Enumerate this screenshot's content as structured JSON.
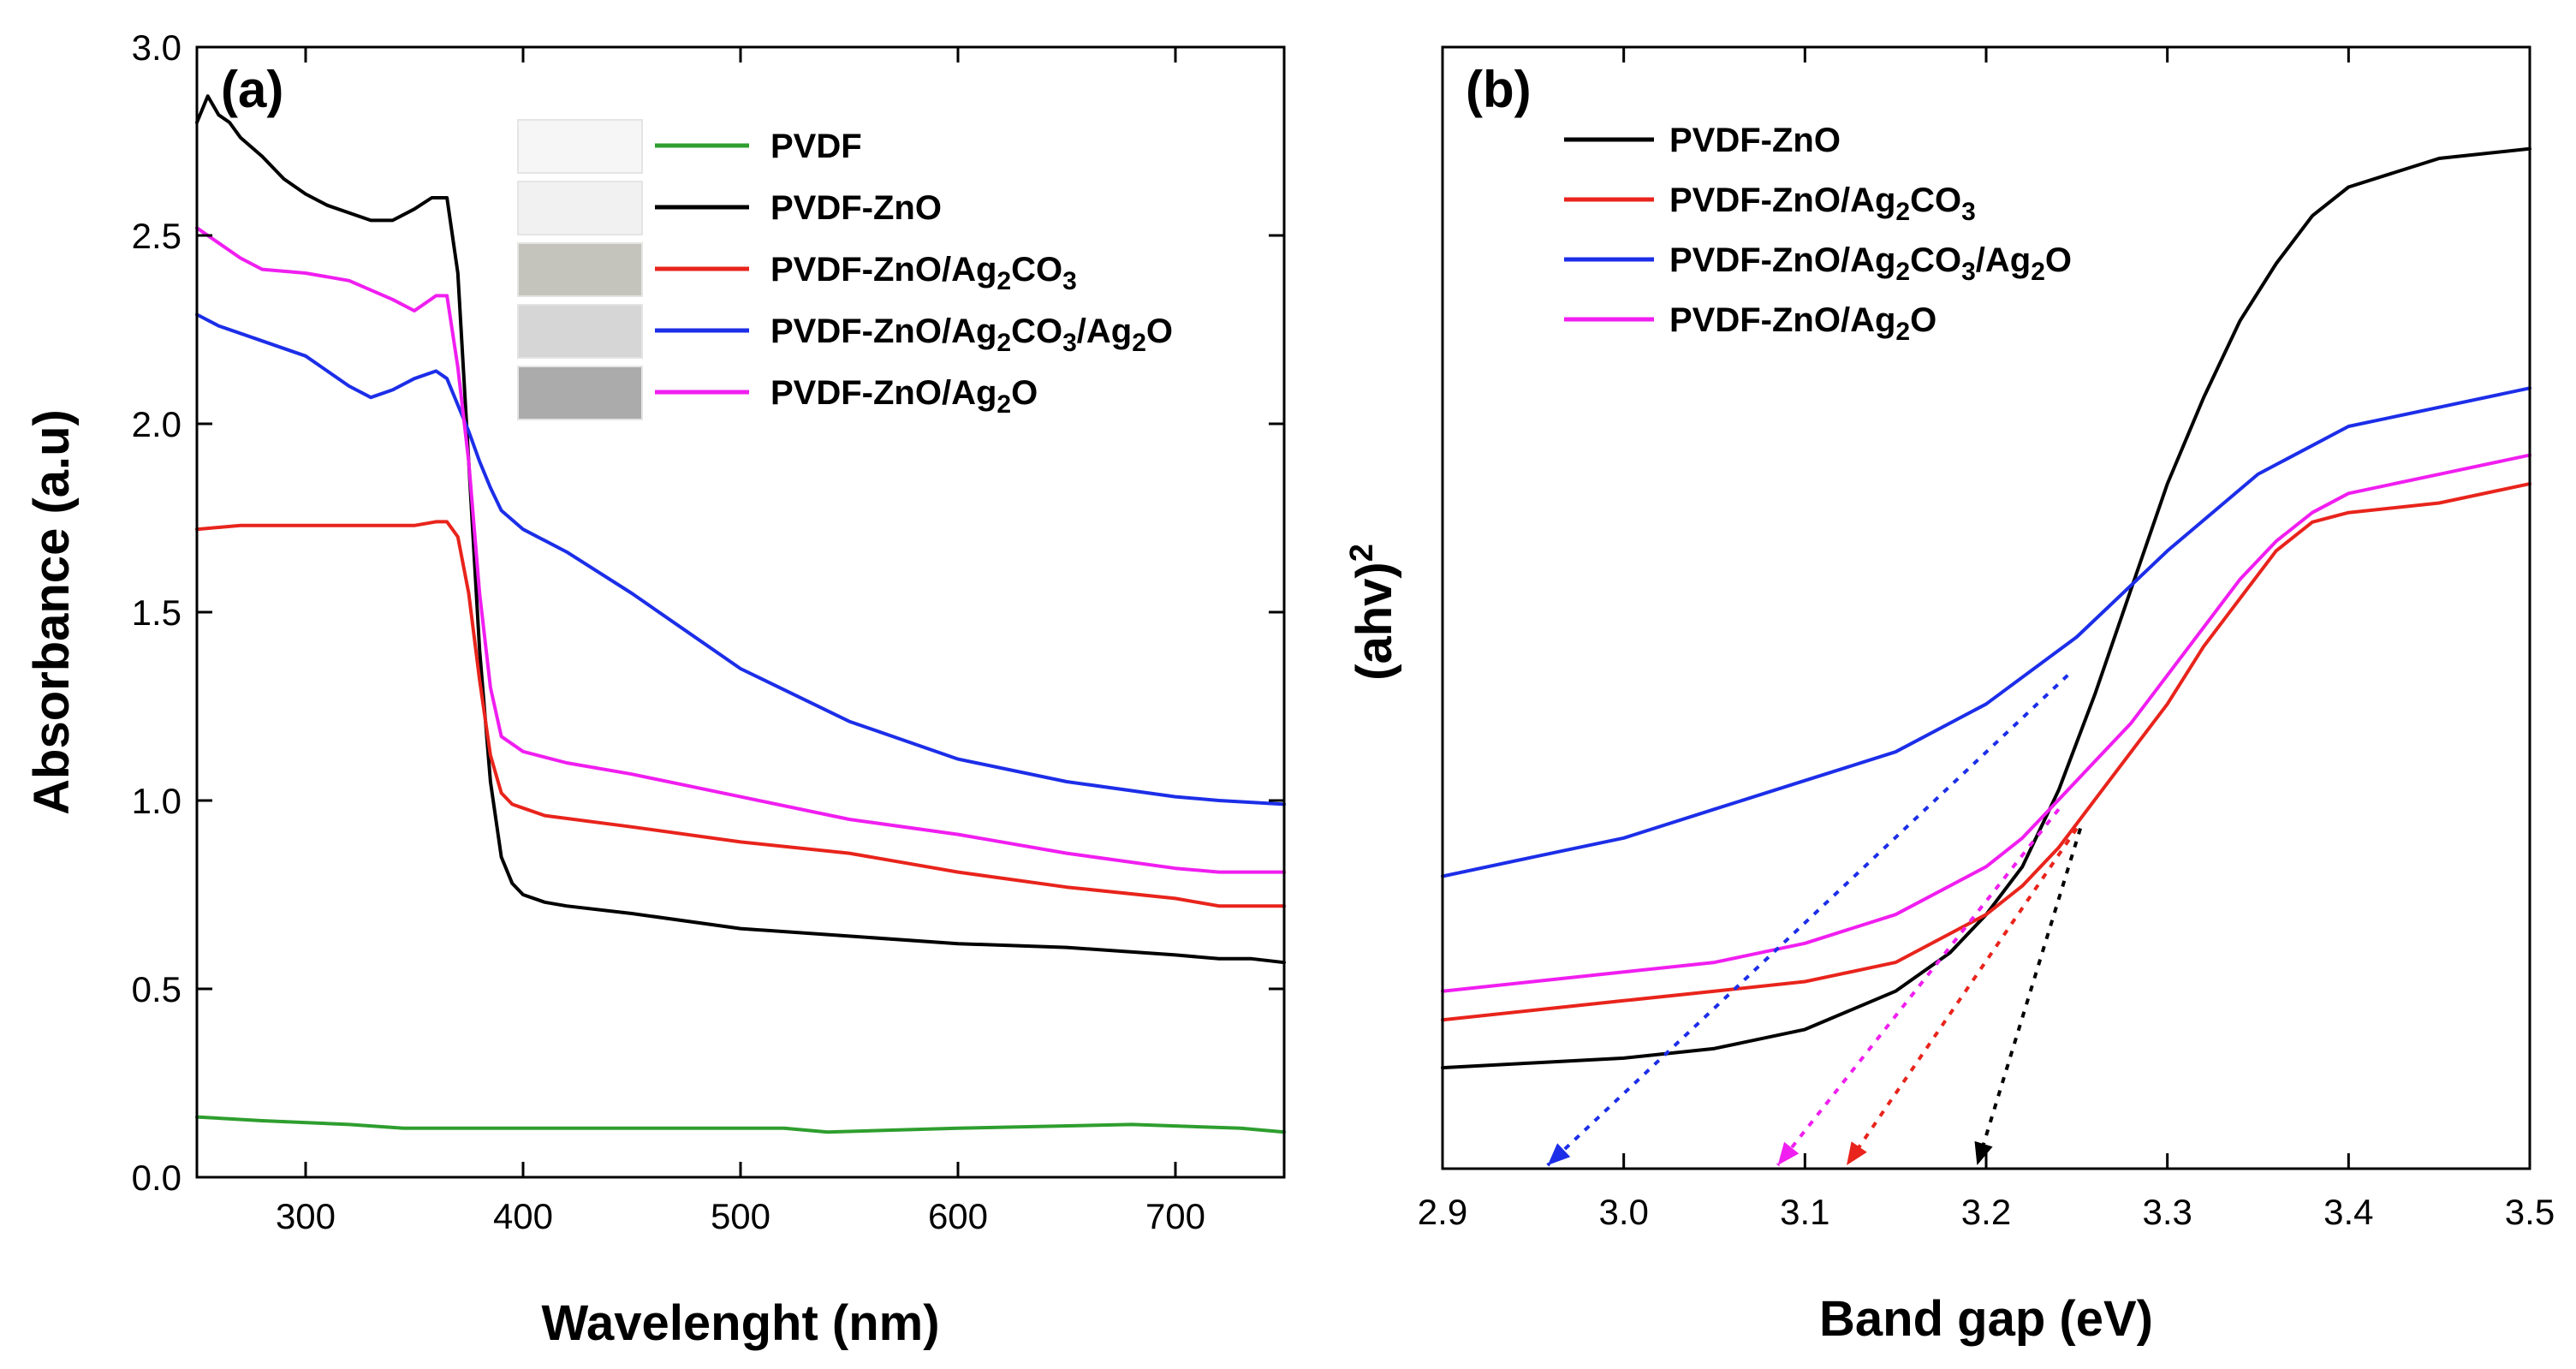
{
  "chart_data": [
    {
      "type": "line",
      "panel_label": "(a)",
      "xlabel": "Wavelenght (nm)",
      "ylabel": "Absorbance (a.u)",
      "xlim": [
        250,
        750
      ],
      "ylim": [
        0.0,
        3.0
      ],
      "x_ticks": [
        300,
        400,
        500,
        600,
        700
      ],
      "y_ticks": [
        0.0,
        0.5,
        1.0,
        1.5,
        2.0,
        2.5,
        3.0
      ],
      "y_tick_labels": [
        "0.0",
        "0.5",
        "1.0",
        "1.5",
        "2.0",
        "2.5",
        "3.0"
      ],
      "grid": false,
      "legend_position": "top-right",
      "legend_swatches": [
        "#f6f6f6",
        "#f1f1f1",
        "#c4c4bc",
        "#d6d6d6",
        "#ababab"
      ],
      "series": [
        {
          "name": "PVDF",
          "label_main": "PVDF",
          "label_parts": [],
          "color": "#2e9e2e",
          "x": [
            250,
            280,
            320,
            345,
            360,
            400,
            450,
            500,
            520,
            540,
            600,
            680,
            730,
            750
          ],
          "y": [
            0.16,
            0.15,
            0.14,
            0.13,
            0.13,
            0.13,
            0.13,
            0.13,
            0.13,
            0.12,
            0.13,
            0.14,
            0.13,
            0.12
          ]
        },
        {
          "name": "PVDF-ZnO",
          "label_main": "PVDF-ZnO",
          "label_parts": [],
          "color": "#000000",
          "x": [
            250,
            255,
            260,
            265,
            270,
            280,
            290,
            300,
            310,
            320,
            330,
            340,
            350,
            358,
            365,
            370,
            375,
            380,
            385,
            390,
            395,
            400,
            410,
            420,
            450,
            500,
            550,
            600,
            650,
            700,
            720,
            735,
            750
          ],
          "y": [
            2.8,
            2.87,
            2.82,
            2.8,
            2.76,
            2.71,
            2.65,
            2.61,
            2.58,
            2.56,
            2.54,
            2.54,
            2.57,
            2.6,
            2.6,
            2.4,
            1.9,
            1.4,
            1.05,
            0.85,
            0.78,
            0.75,
            0.73,
            0.72,
            0.7,
            0.66,
            0.64,
            0.62,
            0.61,
            0.59,
            0.58,
            0.58,
            0.57
          ]
        },
        {
          "name": "PVDF-ZnO/Ag2CO3",
          "label_main": "PVDF-ZnO/Ag",
          "label_parts": [
            "2",
            "CO",
            "3"
          ],
          "color": "#e8241c",
          "x": [
            250,
            270,
            300,
            330,
            350,
            360,
            365,
            370,
            375,
            380,
            385,
            390,
            395,
            400,
            410,
            450,
            500,
            550,
            600,
            650,
            700,
            720,
            750
          ],
          "y": [
            1.72,
            1.73,
            1.73,
            1.73,
            1.73,
            1.74,
            1.74,
            1.7,
            1.55,
            1.32,
            1.12,
            1.02,
            0.99,
            0.98,
            0.96,
            0.93,
            0.89,
            0.86,
            0.81,
            0.77,
            0.74,
            0.72,
            0.72
          ]
        },
        {
          "name": "PVDF-ZnO/Ag2CO3/Ag2O",
          "label_main": "PVDF-ZnO/Ag",
          "label_parts": [
            "2",
            "CO",
            "3",
            "/Ag",
            "2",
            "O"
          ],
          "color": "#1c2ee8",
          "x": [
            250,
            260,
            280,
            300,
            320,
            330,
            340,
            350,
            360,
            365,
            370,
            375,
            380,
            385,
            390,
            400,
            420,
            450,
            480,
            500,
            550,
            600,
            650,
            700,
            720,
            750
          ],
          "y": [
            2.29,
            2.26,
            2.22,
            2.18,
            2.1,
            2.07,
            2.09,
            2.12,
            2.14,
            2.12,
            2.05,
            1.98,
            1.9,
            1.83,
            1.77,
            1.72,
            1.66,
            1.55,
            1.43,
            1.35,
            1.21,
            1.11,
            1.05,
            1.01,
            1.0,
            0.99
          ]
        },
        {
          "name": "PVDF-ZnO/Ag2O",
          "label_main": "PVDF-ZnO/Ag",
          "label_parts": [
            "2",
            "O"
          ],
          "color": "#f01ef0",
          "x": [
            250,
            260,
            270,
            280,
            300,
            320,
            340,
            350,
            360,
            365,
            370,
            375,
            380,
            385,
            390,
            400,
            420,
            450,
            500,
            550,
            600,
            650,
            700,
            720,
            750
          ],
          "y": [
            2.52,
            2.48,
            2.44,
            2.41,
            2.4,
            2.38,
            2.33,
            2.3,
            2.34,
            2.34,
            2.15,
            1.9,
            1.55,
            1.3,
            1.17,
            1.13,
            1.1,
            1.07,
            1.01,
            0.95,
            0.91,
            0.86,
            0.82,
            0.81,
            0.81
          ]
        }
      ]
    },
    {
      "type": "line",
      "panel_label": "(b)",
      "xlabel": "Band gap (eV)",
      "ylabel": "(ahv)",
      "ylabel_sup": "2",
      "xlim": [
        2.9,
        3.5
      ],
      "ylim": [
        0,
        1
      ],
      "x_ticks": [
        2.9,
        3.0,
        3.1,
        3.2,
        3.3,
        3.4,
        3.5
      ],
      "x_tick_labels": [
        "2.9",
        "3.0",
        "3.1",
        "3.2",
        "3.3",
        "3.4",
        "3.5"
      ],
      "grid": false,
      "legend_position": "top-left",
      "series": [
        {
          "name": "PVDF-ZnO",
          "label_main": "PVDF-ZnO",
          "label_parts": [],
          "color": "#000000",
          "x": [
            2.9,
            2.95,
            3.0,
            3.05,
            3.1,
            3.15,
            3.18,
            3.2,
            3.22,
            3.24,
            3.26,
            3.28,
            3.3,
            3.32,
            3.34,
            3.36,
            3.38,
            3.4,
            3.45,
            3.5
          ],
          "y": [
            0.05,
            0.055,
            0.06,
            0.07,
            0.09,
            0.13,
            0.17,
            0.21,
            0.26,
            0.34,
            0.44,
            0.55,
            0.66,
            0.75,
            0.83,
            0.89,
            0.94,
            0.97,
            1.0,
            1.01
          ],
          "extrap": {
            "to_x": 3.195,
            "from": [
              3.252,
              0.3
            ]
          }
        },
        {
          "name": "PVDF-ZnO/Ag2CO3",
          "label_main": "PVDF-ZnO/Ag",
          "label_parts": [
            "2",
            "CO",
            "3"
          ],
          "color": "#e8241c",
          "x": [
            2.9,
            2.95,
            3.0,
            3.05,
            3.1,
            3.15,
            3.2,
            3.22,
            3.24,
            3.26,
            3.28,
            3.3,
            3.32,
            3.34,
            3.36,
            3.38,
            3.4,
            3.45,
            3.5
          ],
          "y": [
            0.1,
            0.11,
            0.12,
            0.13,
            0.14,
            0.16,
            0.21,
            0.24,
            0.28,
            0.33,
            0.38,
            0.43,
            0.49,
            0.54,
            0.59,
            0.62,
            0.63,
            0.64,
            0.66
          ],
          "extrap": {
            "to_x": 3.123,
            "from": [
              3.25,
              0.3
            ]
          }
        },
        {
          "name": "PVDF-ZnO/Ag2CO3/Ag2O",
          "label_main": "PVDF-ZnO/Ag",
          "label_parts": [
            "2",
            "CO",
            "3",
            "/Ag",
            "2",
            "O"
          ],
          "color": "#1c2ee8",
          "x": [
            2.9,
            2.95,
            3.0,
            3.05,
            3.1,
            3.15,
            3.2,
            3.25,
            3.3,
            3.35,
            3.4,
            3.45,
            3.5
          ],
          "y": [
            0.25,
            0.27,
            0.29,
            0.32,
            0.35,
            0.38,
            0.43,
            0.5,
            0.59,
            0.67,
            0.72,
            0.74,
            0.76
          ],
          "extrap": {
            "to_x": 2.958,
            "from": [
              3.245,
              0.46
            ]
          }
        },
        {
          "name": "PVDF-ZnO/Ag2O",
          "label_main": "PVDF-ZnO/Ag",
          "label_parts": [
            "2",
            "O"
          ],
          "color": "#f01ef0",
          "x": [
            2.9,
            2.95,
            3.0,
            3.05,
            3.1,
            3.15,
            3.2,
            3.22,
            3.24,
            3.26,
            3.28,
            3.3,
            3.32,
            3.34,
            3.36,
            3.38,
            3.4,
            3.45,
            3.5
          ],
          "y": [
            0.13,
            0.14,
            0.15,
            0.16,
            0.18,
            0.21,
            0.26,
            0.29,
            0.33,
            0.37,
            0.41,
            0.46,
            0.51,
            0.56,
            0.6,
            0.63,
            0.65,
            0.67,
            0.69
          ],
          "extrap": {
            "to_x": 3.085,
            "from": [
              3.24,
              0.32
            ]
          }
        }
      ]
    }
  ]
}
